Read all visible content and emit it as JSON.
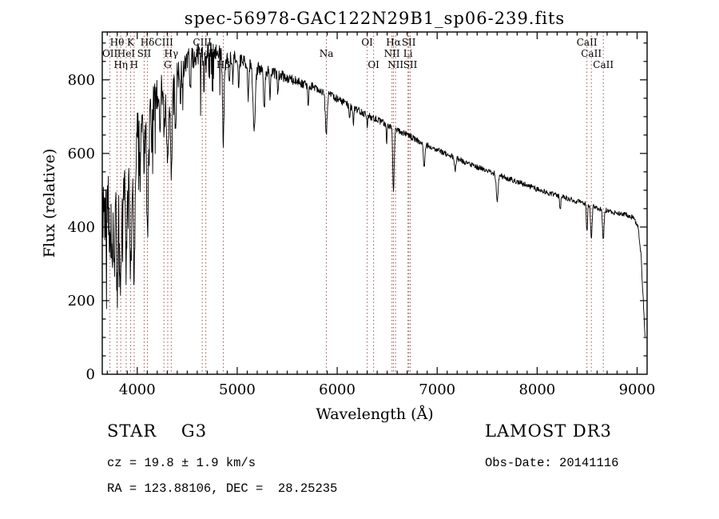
{
  "title": "spec-56978-GAC122N29B1_sp06-239.fits",
  "axes": {
    "x_label": "Wavelength (Å)",
    "y_label": "Flux (relative)"
  },
  "footer": {
    "class_line": "STAR    G3",
    "cz_line": "cz = 19.8 ± 1.9 km/s",
    "radec_line": "RA = 123.88106, DEC =  28.25235",
    "survey_line": "LAMOST DR3",
    "obsdate_line": "Obs-Date: 20141116"
  },
  "colors": {
    "curve": "#000000",
    "axis": "#000000",
    "marker_line": "#a05252",
    "marker_label": "#9c2a2a",
    "background": "#ffffff"
  },
  "chart_data": {
    "type": "line",
    "title": "spec-56978-GAC122N29B1_sp06-239.fits",
    "xlabel": "Wavelength (Å)",
    "ylabel": "Flux (relative)",
    "xlim": [
      3650,
      9100
    ],
    "ylim": [
      0,
      930
    ],
    "x_ticks": [
      4000,
      5000,
      6000,
      7000,
      8000,
      9000
    ],
    "y_ticks": [
      0,
      200,
      400,
      600,
      800
    ],
    "grid": false,
    "legend": "none",
    "noise": {
      "seed": 20141116,
      "base_amp": 85,
      "decay": 750,
      "floor_amp": 7,
      "spike_chance": 0.06,
      "blue_spike": 240,
      "mid_spike": 150
    },
    "continuum": [
      [
        3650,
        420
      ],
      [
        3700,
        480
      ],
      [
        3750,
        500
      ],
      [
        3800,
        540
      ],
      [
        3850,
        580
      ],
      [
        3900,
        600
      ],
      [
        3950,
        620
      ],
      [
        4000,
        660
      ],
      [
        4050,
        690
      ],
      [
        4100,
        710
      ],
      [
        4150,
        730
      ],
      [
        4200,
        755
      ],
      [
        4250,
        775
      ],
      [
        4300,
        790
      ],
      [
        4350,
        805
      ],
      [
        4400,
        825
      ],
      [
        4450,
        845
      ],
      [
        4500,
        855
      ],
      [
        4550,
        862
      ],
      [
        4600,
        868
      ],
      [
        4650,
        872
      ],
      [
        4700,
        876
      ],
      [
        4750,
        878
      ],
      [
        4800,
        875
      ],
      [
        4850,
        870
      ],
      [
        4900,
        866
      ],
      [
        4950,
        862
      ],
      [
        5000,
        856
      ],
      [
        5100,
        844
      ],
      [
        5200,
        832
      ],
      [
        5300,
        824
      ],
      [
        5400,
        815
      ],
      [
        5500,
        806
      ],
      [
        5600,
        795
      ],
      [
        5700,
        786
      ],
      [
        5800,
        776
      ],
      [
        5900,
        763
      ],
      [
        6000,
        748
      ],
      [
        6100,
        733
      ],
      [
        6200,
        718
      ],
      [
        6300,
        704
      ],
      [
        6400,
        692
      ],
      [
        6500,
        678
      ],
      [
        6600,
        664
      ],
      [
        6700,
        650
      ],
      [
        6800,
        636
      ],
      [
        6900,
        622
      ],
      [
        7000,
        610
      ],
      [
        7100,
        598
      ],
      [
        7200,
        586
      ],
      [
        7300,
        574
      ],
      [
        7400,
        563
      ],
      [
        7500,
        553
      ],
      [
        7600,
        543
      ],
      [
        7700,
        533
      ],
      [
        7800,
        523
      ],
      [
        7900,
        513
      ],
      [
        8000,
        503
      ],
      [
        8100,
        494
      ],
      [
        8200,
        486
      ],
      [
        8300,
        478
      ],
      [
        8400,
        470
      ],
      [
        8500,
        462
      ],
      [
        8600,
        452
      ],
      [
        8700,
        444
      ],
      [
        8800,
        438
      ],
      [
        8900,
        432
      ],
      [
        8960,
        426
      ],
      [
        9010,
        400
      ],
      [
        9040,
        320
      ],
      [
        9065,
        180
      ],
      [
        9080,
        90
      ]
    ],
    "absorption_features": [
      [
        3727,
        160,
        7
      ],
      [
        3750,
        260,
        6
      ],
      [
        3770,
        240,
        5
      ],
      [
        3798,
        330,
        7
      ],
      [
        3820,
        180,
        5
      ],
      [
        3835,
        320,
        7
      ],
      [
        3860,
        160,
        5
      ],
      [
        3889,
        300,
        7
      ],
      [
        3910,
        140,
        5
      ],
      [
        3934,
        360,
        8
      ],
      [
        3969,
        370,
        9
      ],
      [
        4026,
        120,
        5
      ],
      [
        4069,
        130,
        6
      ],
      [
        4102,
        340,
        8
      ],
      [
        4144,
        120,
        5
      ],
      [
        4227,
        130,
        5
      ],
      [
        4271,
        140,
        5
      ],
      [
        4305,
        190,
        11
      ],
      [
        4340,
        270,
        8
      ],
      [
        4383,
        170,
        6
      ],
      [
        4430,
        110,
        5
      ],
      [
        4455,
        100,
        5
      ],
      [
        4531,
        90,
        5
      ],
      [
        4668,
        90,
        5
      ],
      [
        4861,
        235,
        8
      ],
      [
        4920,
        80,
        5
      ],
      [
        4957,
        70,
        5
      ],
      [
        5015,
        80,
        5
      ],
      [
        5110,
        90,
        6
      ],
      [
        5170,
        175,
        11
      ],
      [
        5270,
        110,
        7
      ],
      [
        5328,
        70,
        5
      ],
      [
        5406,
        60,
        5
      ],
      [
        5710,
        50,
        5
      ],
      [
        5890,
        115,
        9
      ],
      [
        6122,
        40,
        5
      ],
      [
        6162,
        40,
        5
      ],
      [
        6300,
        35,
        4
      ],
      [
        6495,
        45,
        5
      ],
      [
        6563,
        175,
        7
      ],
      [
        6870,
        60,
        8
      ],
      [
        7180,
        40,
        6
      ],
      [
        7600,
        70,
        9
      ],
      [
        8230,
        40,
        6
      ],
      [
        8498,
        75,
        6
      ],
      [
        8542,
        95,
        7
      ],
      [
        8662,
        85,
        7
      ]
    ],
    "marked_lines": [
      {
        "label": "OII",
        "wavelength": 3727,
        "row": 2
      },
      {
        "label": "Hθ",
        "wavelength": 3798,
        "row": 1
      },
      {
        "label": "Hη",
        "wavelength": 3835,
        "row": 3
      },
      {
        "label": "HeI",
        "wavelength": 3889,
        "row": 2
      },
      {
        "label": "K",
        "wavelength": 3934,
        "row": 1
      },
      {
        "label": "H",
        "wavelength": 3969,
        "row": 3
      },
      {
        "label": "SII",
        "wavelength": 4069,
        "row": 2
      },
      {
        "label": "Hδ",
        "wavelength": 4102,
        "row": 1
      },
      {
        "label": "CIII",
        "wavelength": 4267,
        "row": 1
      },
      {
        "label": "G",
        "wavelength": 4305,
        "row": 3
      },
      {
        "label": "Hγ",
        "wavelength": 4340,
        "row": 2
      },
      {
        "label": "CIII",
        "wavelength": 4650,
        "row": 1
      },
      {
        "label": "HeII",
        "wavelength": 4686,
        "row": 2
      },
      {
        "label": "Hβ",
        "wavelength": 4861,
        "row": 3
      },
      {
        "label": "Na",
        "wavelength": 5892,
        "row": 2
      },
      {
        "label": "OI",
        "wavelength": 6300,
        "row": 1
      },
      {
        "label": "OI",
        "wavelength": 6364,
        "row": 3
      },
      {
        "label": "NII",
        "wavelength": 6548,
        "row": 2
      },
      {
        "label": "Hα",
        "wavelength": 6563,
        "row": 1
      },
      {
        "label": "NII",
        "wavelength": 6584,
        "row": 3
      },
      {
        "label": "Li",
        "wavelength": 6708,
        "row": 2
      },
      {
        "label": "SII",
        "wavelength": 6716,
        "row": 1
      },
      {
        "label": "SII",
        "wavelength": 6731,
        "row": 3
      },
      {
        "label": "CaII",
        "wavelength": 8498,
        "row": 1
      },
      {
        "label": "CaII",
        "wavelength": 8542,
        "row": 2
      },
      {
        "label": "CaII",
        "wavelength": 8662,
        "row": 3
      }
    ]
  }
}
